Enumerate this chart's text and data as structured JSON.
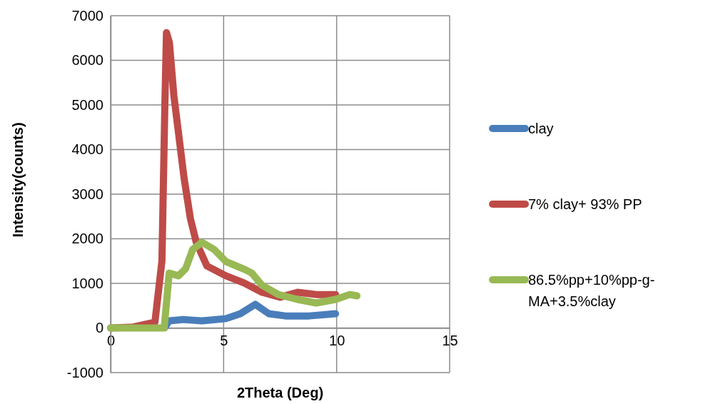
{
  "chart_data": {
    "type": "line",
    "xlabel": "2Theta (Deg)",
    "ylabel": "Intensity(counts)",
    "xlim": [
      0,
      15
    ],
    "xticks": [
      0,
      5,
      10,
      15
    ],
    "ylim": [
      -1000,
      7000
    ],
    "yticks": [
      -1000,
      0,
      1000,
      2000,
      3000,
      4000,
      5000,
      6000,
      7000
    ],
    "grid": true,
    "legend": "right",
    "marker": "none",
    "line_style": "solid",
    "series": [
      {
        "name": "clay",
        "color": "#4a7ebb",
        "x": [
          2.4,
          2.59,
          3.2,
          4.04,
          5.1,
          5.74,
          6.4,
          7.0,
          7.74,
          8.78,
          9.95
        ],
        "values": [
          10,
          160,
          190,
          160,
          210,
          320,
          530,
          320,
          270,
          270,
          320
        ]
      },
      {
        "name": "7% clay+ 93% PP",
        "color": "#be4b48",
        "x": [
          0,
          1,
          1.96,
          2.27,
          2.4,
          2.47,
          2.6,
          2.8,
          3.25,
          3.53,
          3.79,
          4.26,
          5.1,
          5.9,
          6.7,
          7.5,
          8.27,
          9.1,
          9.95
        ],
        "values": [
          0,
          20,
          130,
          1500,
          5000,
          6620,
          6400,
          5200,
          3360,
          2450,
          1920,
          1390,
          1170,
          1010,
          800,
          690,
          800,
          750,
          750
        ]
      },
      {
        "name": "86.5%pp+10%pp-g-MA+3.5%clay",
        "color": "#98b954",
        "x": [
          0,
          1,
          2.37,
          2.59,
          3.0,
          3.32,
          3.63,
          4.04,
          4.58,
          5.1,
          5.94,
          6.25,
          6.69,
          7.42,
          8.27,
          9.1,
          9.95,
          10.58,
          10.9
        ],
        "values": [
          0,
          0,
          0,
          1230,
          1170,
          1330,
          1760,
          1920,
          1760,
          1490,
          1310,
          1230,
          960,
          750,
          640,
          560,
          640,
          750,
          720
        ]
      }
    ]
  }
}
